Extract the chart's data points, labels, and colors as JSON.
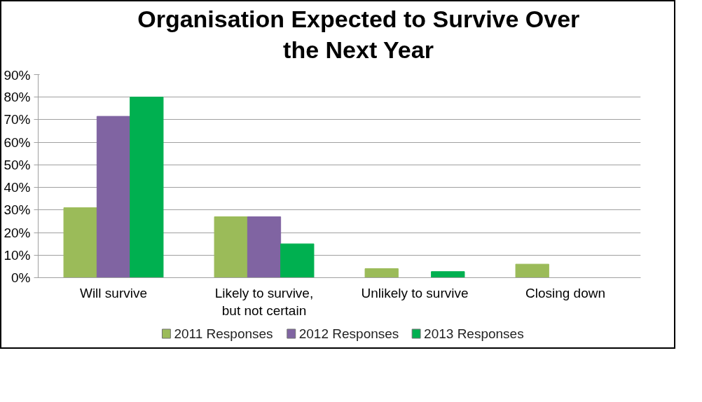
{
  "chart_data": {
    "type": "bar",
    "title": "Organisation Expected to Survive Over\nthe Next Year",
    "categories": [
      "Will survive",
      "Likely to survive,\nbut not certain",
      "Unlikely to survive",
      "Closing down"
    ],
    "series": [
      {
        "name": "2011 Responses",
        "color": "#9bbb59",
        "values": [
          31,
          27,
          4,
          6
        ]
      },
      {
        "name": "2012 Responses",
        "color": "#8064a2",
        "values": [
          71.5,
          27,
          0,
          0
        ]
      },
      {
        "name": "2013 Responses",
        "color": "#00b050",
        "values": [
          80,
          15,
          2.7,
          0
        ]
      }
    ],
    "ylim": [
      0,
      90
    ],
    "yticks": [
      {
        "value": 0,
        "label": "0%"
      },
      {
        "value": 10,
        "label": "10%"
      },
      {
        "value": 20,
        "label": "20%"
      },
      {
        "value": 30,
        "label": "30%"
      },
      {
        "value": 40,
        "label": "40%"
      },
      {
        "value": 50,
        "label": "50%"
      },
      {
        "value": 60,
        "label": "60%"
      },
      {
        "value": 70,
        "label": "70%"
      },
      {
        "value": 80,
        "label": "80%"
      },
      {
        "value": 90,
        "label": "90%"
      }
    ],
    "grid": "y",
    "legend": "bottom"
  }
}
